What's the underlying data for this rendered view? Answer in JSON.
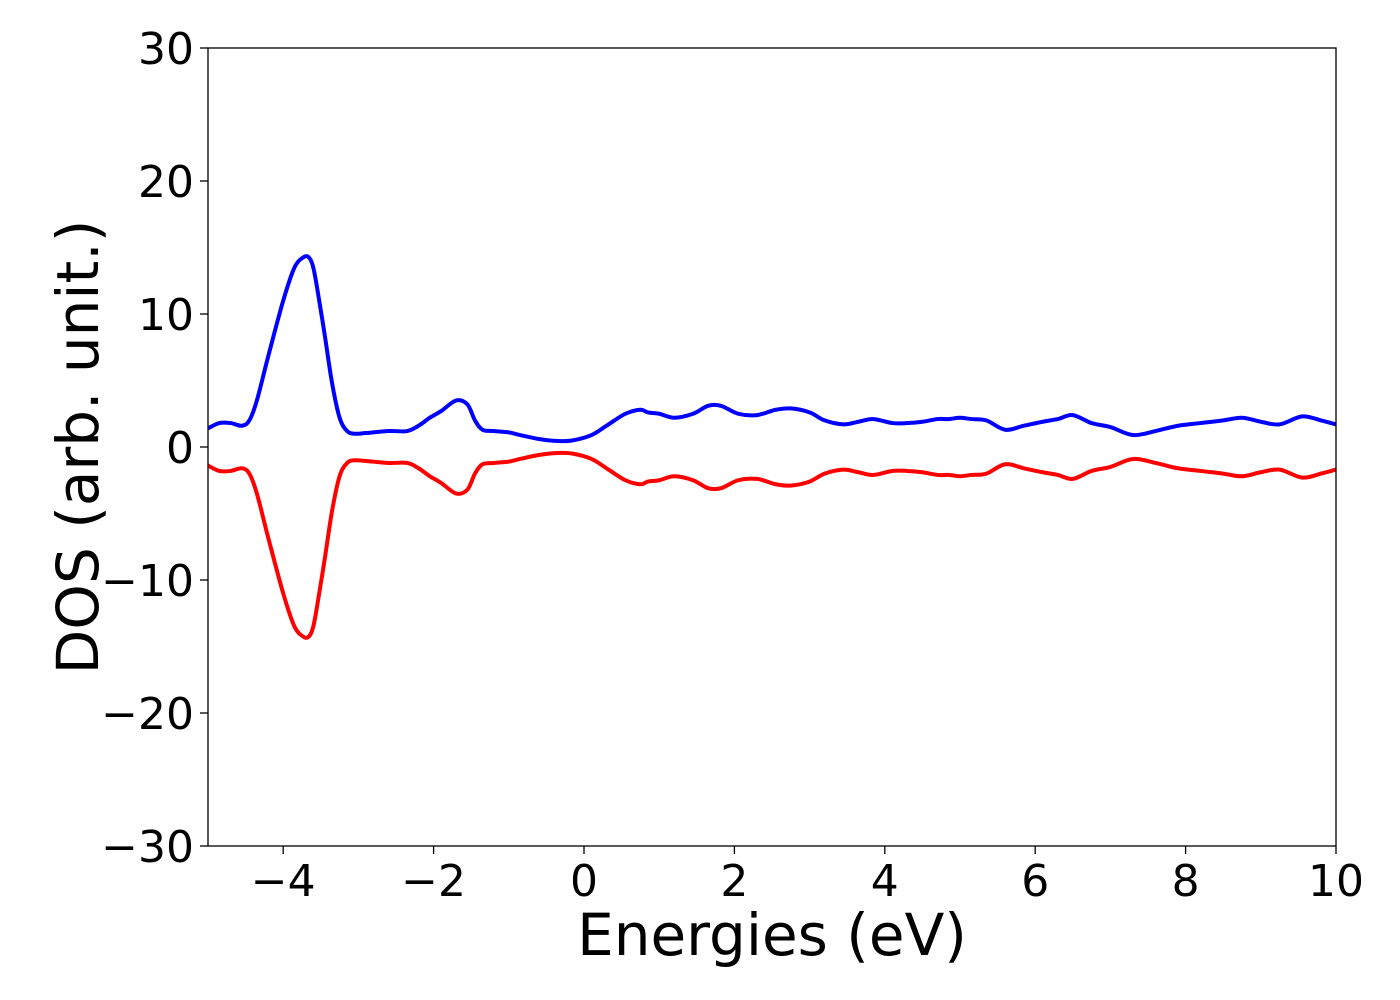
{
  "chart_data": {
    "type": "line",
    "title": "",
    "xlabel": "Energies (eV)",
    "ylabel": "DOS (arb. unit.)",
    "xlim": [
      -5,
      10
    ],
    "ylim": [
      -30,
      30
    ],
    "x_ticks": [
      -4,
      -2,
      0,
      2,
      4,
      6,
      8,
      10
    ],
    "x_tick_labels": [
      "−4",
      "−2",
      "0",
      "2",
      "4",
      "6",
      "8",
      "10"
    ],
    "y_ticks": [
      30,
      20,
      10,
      0,
      -10,
      -20,
      -30
    ],
    "y_tick_labels": [
      "30",
      "20",
      "10",
      "0",
      "−10",
      "−20",
      "−30"
    ],
    "grid": false,
    "legend": "none",
    "series": [
      {
        "color": "#0000ff",
        "x": [
          -5.0,
          -4.85,
          -4.7,
          -4.55,
          -4.45,
          -4.35,
          -4.2,
          -4.0,
          -3.85,
          -3.72,
          -3.65,
          -3.6,
          -3.55,
          -3.45,
          -3.35,
          -3.25,
          -3.15,
          -3.05,
          -2.9,
          -2.6,
          -2.35,
          -2.2,
          -2.05,
          -1.9,
          -1.7,
          -1.55,
          -1.45,
          -1.35,
          -1.2,
          -1.0,
          -0.85,
          -0.6,
          -0.35,
          -0.15,
          0.1,
          0.3,
          0.55,
          0.75,
          0.85,
          1.0,
          1.2,
          1.45,
          1.65,
          1.82,
          2.05,
          2.3,
          2.55,
          2.75,
          3.0,
          3.2,
          3.45,
          3.65,
          3.85,
          4.1,
          4.3,
          4.5,
          4.7,
          4.85,
          5.0,
          5.15,
          5.35,
          5.6,
          5.85,
          6.1,
          6.3,
          6.5,
          6.75,
          7.0,
          7.3,
          7.6,
          7.9,
          8.2,
          8.5,
          8.75,
          9.0,
          9.25,
          9.55,
          9.8,
          10.0
        ],
        "y": [
          1.4,
          1.8,
          1.8,
          1.6,
          2.0,
          3.5,
          6.8,
          11.0,
          13.5,
          14.3,
          14.2,
          13.5,
          12.0,
          8.5,
          4.8,
          2.2,
          1.2,
          1.0,
          1.05,
          1.2,
          1.2,
          1.6,
          2.2,
          2.7,
          3.5,
          3.2,
          2.0,
          1.3,
          1.2,
          1.1,
          0.9,
          0.6,
          0.45,
          0.5,
          0.9,
          1.6,
          2.5,
          2.8,
          2.6,
          2.5,
          2.2,
          2.5,
          3.1,
          3.1,
          2.5,
          2.4,
          2.8,
          2.9,
          2.6,
          2.0,
          1.7,
          1.9,
          2.1,
          1.8,
          1.8,
          1.9,
          2.1,
          2.1,
          2.2,
          2.1,
          2.0,
          1.3,
          1.6,
          1.9,
          2.1,
          2.4,
          1.8,
          1.5,
          0.9,
          1.2,
          1.6,
          1.8,
          2.0,
          2.2,
          1.9,
          1.7,
          2.3,
          2.0,
          1.7
        ]
      },
      {
        "color": "#ff0000",
        "x": [
          -5.0,
          -4.85,
          -4.7,
          -4.55,
          -4.45,
          -4.35,
          -4.2,
          -4.0,
          -3.85,
          -3.72,
          -3.65,
          -3.6,
          -3.55,
          -3.45,
          -3.35,
          -3.25,
          -3.15,
          -3.05,
          -2.9,
          -2.6,
          -2.35,
          -2.2,
          -2.05,
          -1.9,
          -1.7,
          -1.55,
          -1.45,
          -1.35,
          -1.2,
          -1.0,
          -0.85,
          -0.6,
          -0.35,
          -0.15,
          0.1,
          0.3,
          0.55,
          0.75,
          0.85,
          1.0,
          1.2,
          1.45,
          1.65,
          1.82,
          2.05,
          2.3,
          2.55,
          2.75,
          3.0,
          3.2,
          3.45,
          3.65,
          3.85,
          4.1,
          4.3,
          4.5,
          4.7,
          4.85,
          5.0,
          5.15,
          5.35,
          5.6,
          5.85,
          6.1,
          6.3,
          6.5,
          6.75,
          7.0,
          7.3,
          7.6,
          7.9,
          8.2,
          8.5,
          8.75,
          9.0,
          9.25,
          9.55,
          9.8,
          10.0
        ],
        "y": [
          -1.4,
          -1.8,
          -1.8,
          -1.6,
          -2.0,
          -3.5,
          -6.8,
          -11.0,
          -13.5,
          -14.3,
          -14.2,
          -13.5,
          -12.0,
          -8.5,
          -4.8,
          -2.2,
          -1.2,
          -1.0,
          -1.05,
          -1.2,
          -1.2,
          -1.6,
          -2.2,
          -2.7,
          -3.5,
          -3.2,
          -2.0,
          -1.3,
          -1.2,
          -1.1,
          -0.9,
          -0.6,
          -0.45,
          -0.5,
          -0.9,
          -1.6,
          -2.5,
          -2.8,
          -2.6,
          -2.5,
          -2.2,
          -2.5,
          -3.1,
          -3.1,
          -2.5,
          -2.4,
          -2.8,
          -2.9,
          -2.6,
          -2.0,
          -1.7,
          -1.9,
          -2.1,
          -1.8,
          -1.8,
          -1.9,
          -2.1,
          -2.1,
          -2.2,
          -2.1,
          -2.0,
          -1.3,
          -1.6,
          -1.9,
          -2.1,
          -2.4,
          -1.8,
          -1.5,
          -0.9,
          -1.2,
          -1.6,
          -1.8,
          -2.0,
          -2.2,
          -1.9,
          -1.7,
          -2.3,
          -2.0,
          -1.7
        ]
      }
    ]
  }
}
